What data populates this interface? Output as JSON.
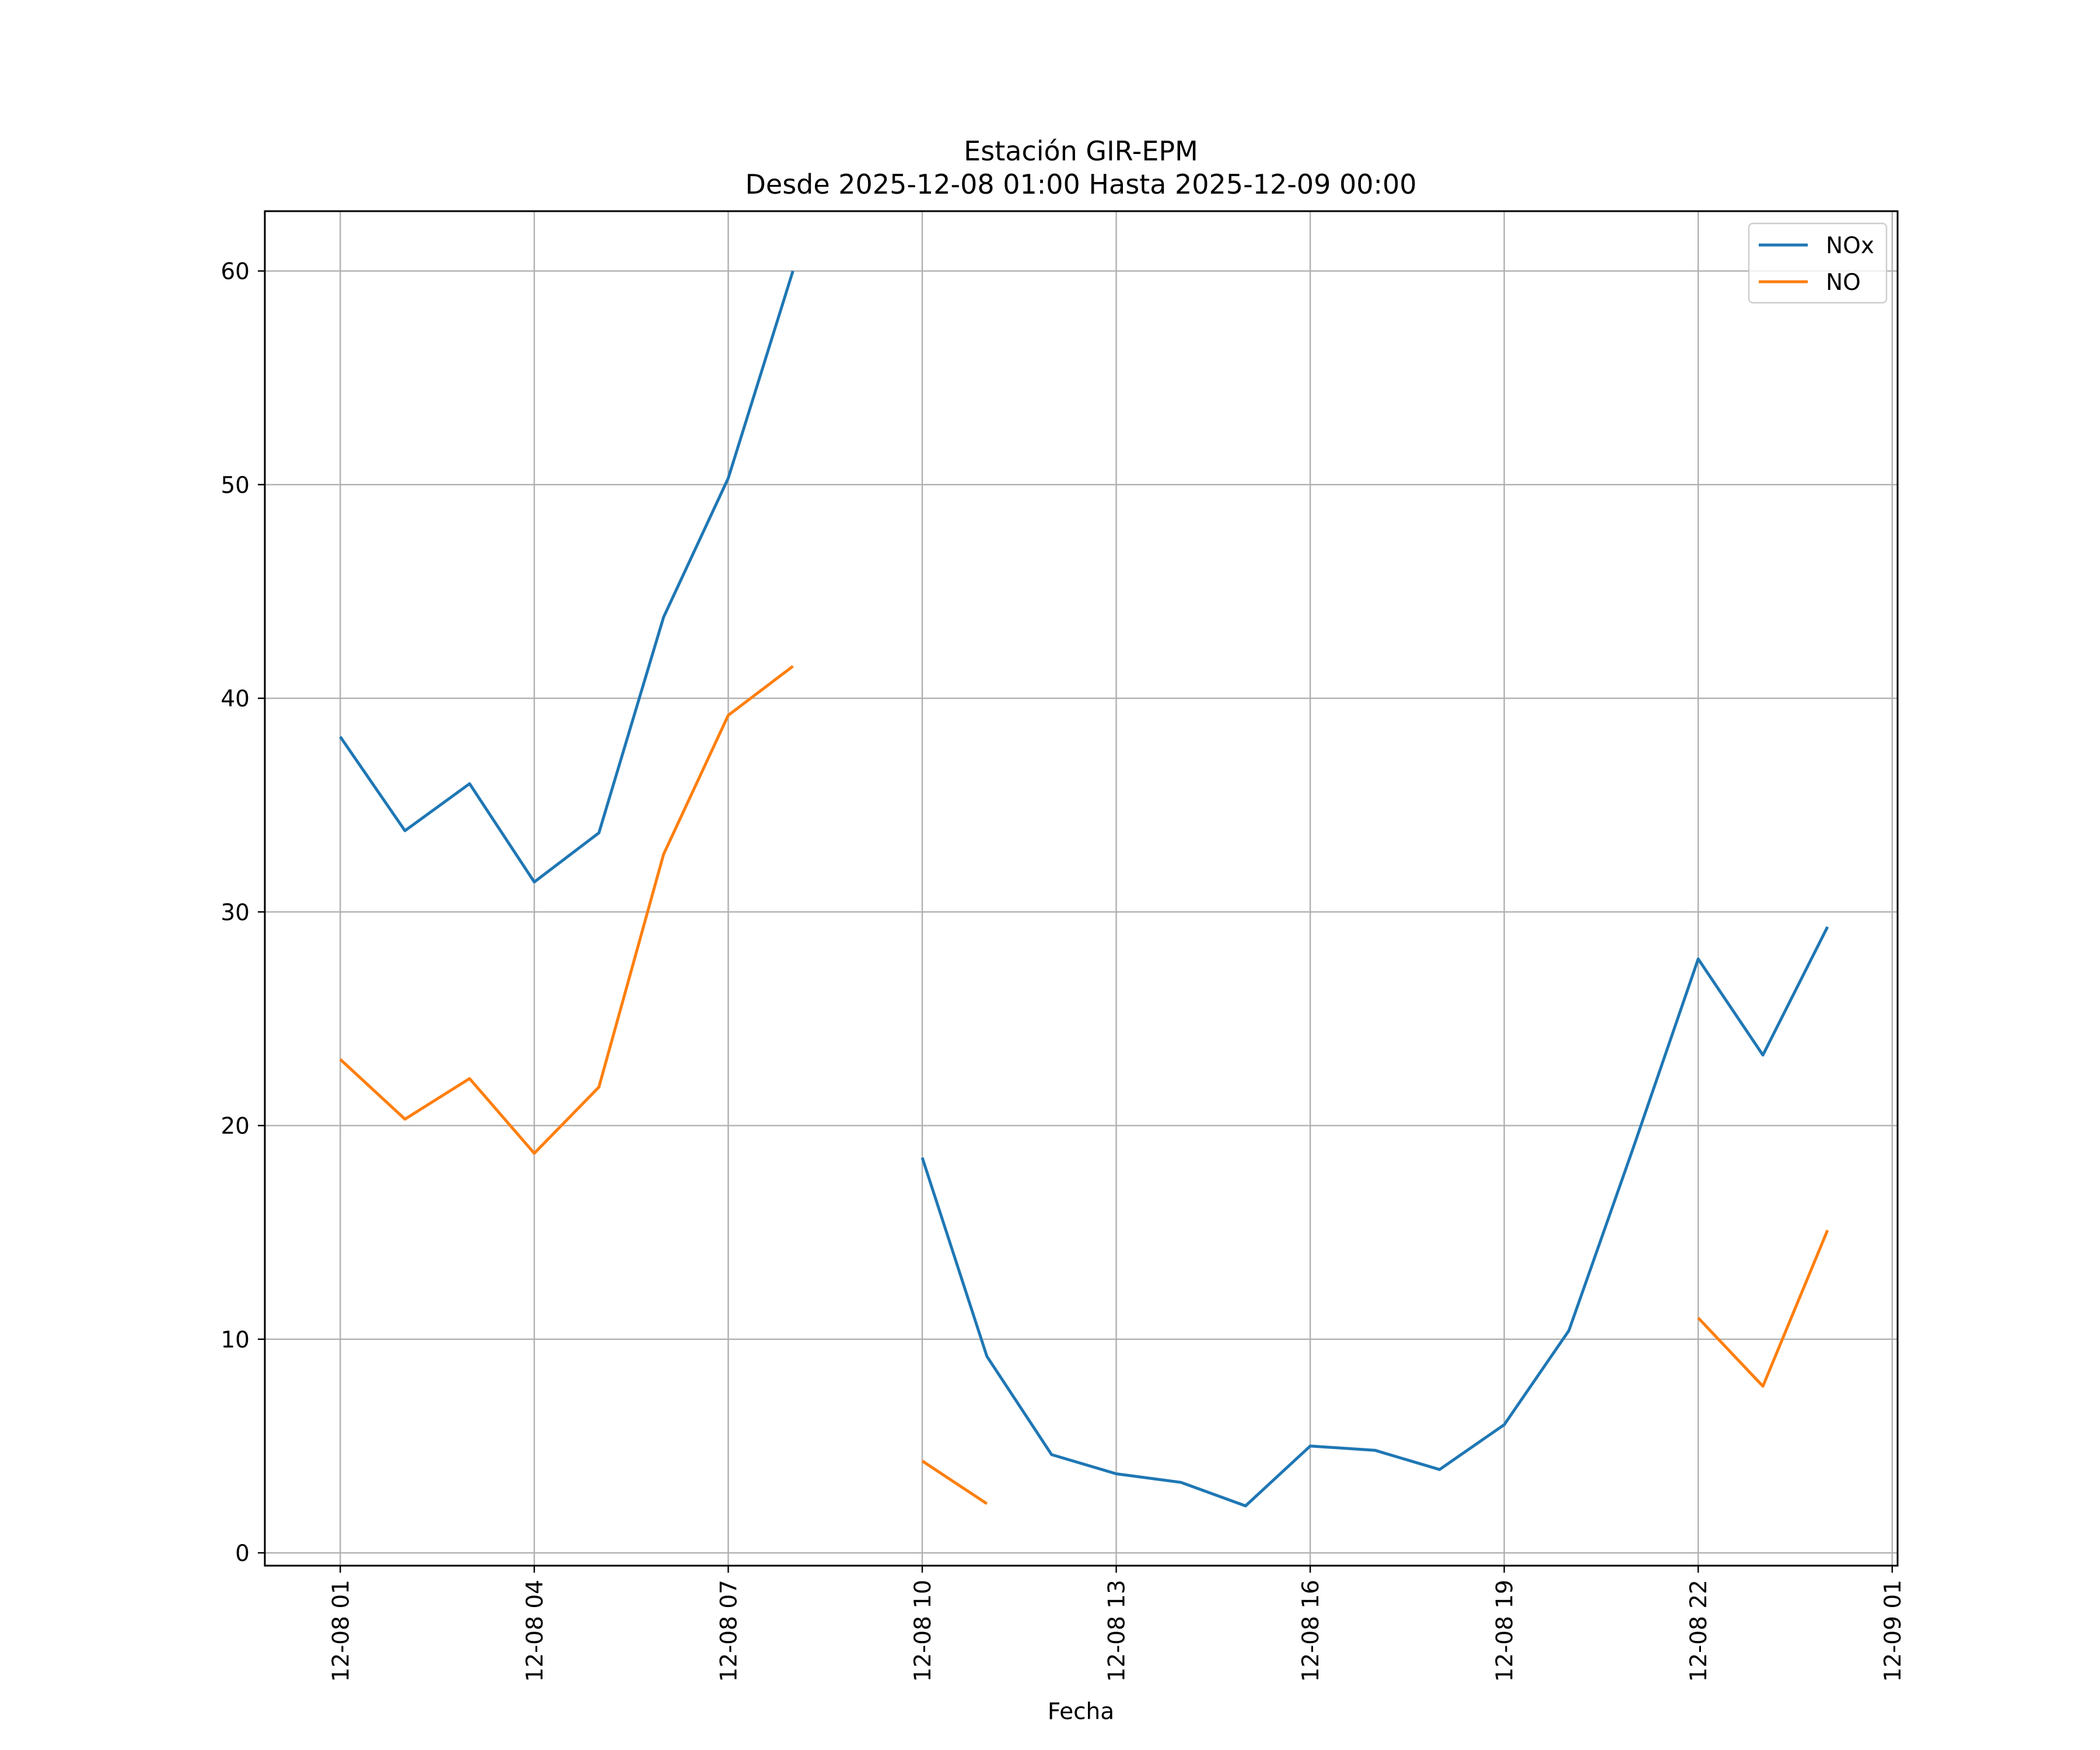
{
  "chart_data": {
    "type": "line",
    "title": "Estación GIR-EPM",
    "subtitle": "Desde 2025-12-08 01:00 Hasta 2025-12-09 00:00",
    "xlabel": "Fecha",
    "ylabel": "",
    "x": [
      "2025-12-08 01:00",
      "2025-12-08 02:00",
      "2025-12-08 03:00",
      "2025-12-08 04:00",
      "2025-12-08 05:00",
      "2025-12-08 06:00",
      "2025-12-08 07:00",
      "2025-12-08 08:00",
      "2025-12-08 09:00",
      "2025-12-08 10:00",
      "2025-12-08 11:00",
      "2025-12-08 12:00",
      "2025-12-08 13:00",
      "2025-12-08 14:00",
      "2025-12-08 15:00",
      "2025-12-08 16:00",
      "2025-12-08 17:00",
      "2025-12-08 18:00",
      "2025-12-08 19:00",
      "2025-12-08 20:00",
      "2025-12-08 21:00",
      "2025-12-08 22:00",
      "2025-12-08 23:00",
      "2025-12-09 00:00"
    ],
    "series": [
      {
        "name": "NOx",
        "color": "#1f77b4",
        "values": [
          38.2,
          33.8,
          36.0,
          31.4,
          33.7,
          43.8,
          50.3,
          60.0,
          null,
          18.5,
          9.2,
          4.6,
          3.7,
          3.3,
          2.2,
          5.0,
          4.8,
          3.9,
          6.0,
          10.4,
          19.0,
          27.8,
          23.3,
          29.3
        ]
      },
      {
        "name": "NO",
        "color": "#ff7f0e",
        "values": [
          23.1,
          20.3,
          22.2,
          18.7,
          21.8,
          32.7,
          39.2,
          41.5,
          null,
          4.3,
          2.3,
          null,
          null,
          null,
          null,
          null,
          null,
          null,
          null,
          null,
          null,
          11.0,
          7.8,
          15.1
        ]
      }
    ],
    "xticks": [
      {
        "x": "2025-12-08 01:00",
        "label": "12-08 01"
      },
      {
        "x": "2025-12-08 04:00",
        "label": "12-08 04"
      },
      {
        "x": "2025-12-08 07:00",
        "label": "12-08 07"
      },
      {
        "x": "2025-12-08 10:00",
        "label": "12-08 10"
      },
      {
        "x": "2025-12-08 13:00",
        "label": "12-08 13"
      },
      {
        "x": "2025-12-08 16:00",
        "label": "12-08 16"
      },
      {
        "x": "2025-12-08 19:00",
        "label": "12-08 19"
      },
      {
        "x": "2025-12-08 22:00",
        "label": "12-08 22"
      },
      {
        "x": "2025-12-09 01:00",
        "label": "12-09 01"
      }
    ],
    "yticks": [
      0,
      10,
      20,
      30,
      40,
      50,
      60
    ],
    "xlim": [
      "2025-12-07 23:50",
      "2025-12-09 01:05"
    ],
    "ylim": [
      -0.6,
      62.8
    ],
    "grid": true,
    "legend": "top-right"
  }
}
